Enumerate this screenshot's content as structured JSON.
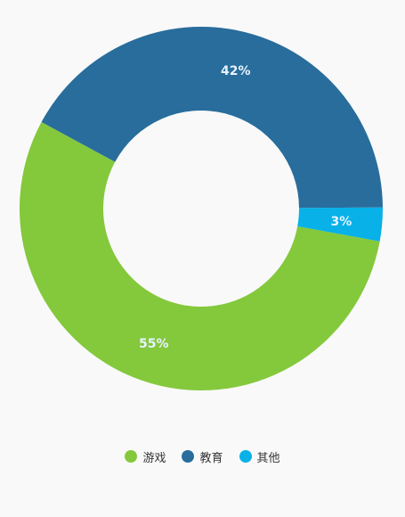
{
  "chart_data": {
    "type": "pie",
    "variant": "donut",
    "categories": [
      "游戏",
      "教育",
      "其他"
    ],
    "values": [
      55,
      42,
      3
    ],
    "labels": [
      "55%",
      "42%",
      "3%"
    ],
    "colors": [
      "#84c83c",
      "#286d9c",
      "#08b1e8"
    ],
    "title": "",
    "legend_position": "bottom-center"
  },
  "legend": {
    "items": [
      {
        "label": "游戏",
        "color": "#84c83c"
      },
      {
        "label": "教育",
        "color": "#286d9c"
      },
      {
        "label": "其他",
        "color": "#08b1e8"
      }
    ]
  }
}
